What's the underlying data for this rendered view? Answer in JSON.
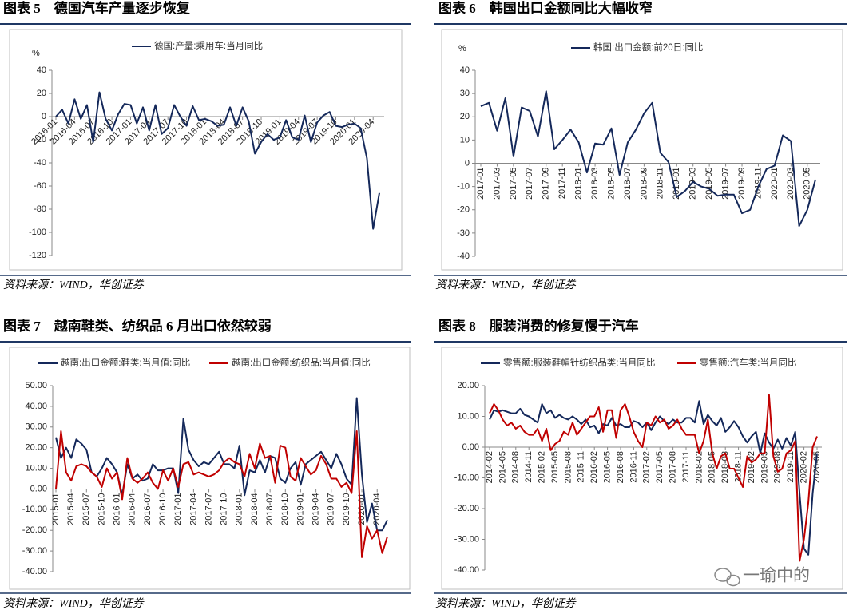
{
  "chart_data": [
    {
      "type": "line",
      "title": "图表 5　德国汽车产量逐步恢复",
      "source": "资料来源：WIND，华创证券",
      "y_label": "%",
      "categories": [
        "2016-01",
        null,
        null,
        "2016-04",
        null,
        null,
        "2016-07",
        null,
        null,
        "2016-10",
        null,
        null,
        "2017-01",
        null,
        null,
        "2017-04",
        null,
        null,
        "2017-07",
        null,
        null,
        "2017-10",
        null,
        null,
        "2018-01",
        null,
        null,
        "2018-04",
        null,
        null,
        "2018-07",
        null,
        null,
        "2018-10",
        null,
        null,
        "2019-01",
        null,
        null,
        "2019-04",
        null,
        null,
        "2019-07",
        null,
        null,
        "2019-10",
        null,
        null,
        "2020-01",
        null,
        null,
        "2020-04",
        null
      ],
      "series": [
        {
          "name": "德国:产量:乘用车:当月同比",
          "color": "#14285a",
          "values": [
            0,
            6,
            -6,
            15,
            -2,
            10,
            -22,
            21,
            -2,
            -12,
            2,
            11,
            10,
            -6,
            8,
            -12,
            10,
            -15,
            -10,
            10,
            0,
            -8,
            9,
            -3,
            -2,
            -4,
            -8,
            -7,
            8,
            -8,
            8,
            -4,
            -32,
            -22,
            -15,
            -20,
            -18,
            -3,
            -18,
            -20,
            1,
            -22,
            -5,
            1,
            4,
            -8,
            -9,
            -7,
            -6,
            -10,
            -36,
            -97,
            -66
          ]
        }
      ],
      "ylim": [
        -120,
        40
      ],
      "yticks": [
        -120,
        -100,
        -80,
        -60,
        -40,
        -20,
        0,
        20,
        40
      ]
    },
    {
      "type": "line",
      "title": "图表 6　韩国出口金额同比大幅收窄",
      "source": "资料来源：WIND，华创证券",
      "y_label": "%",
      "categories": [
        "2017-01",
        null,
        "2017-03",
        null,
        "2017-05",
        null,
        "2017-07",
        null,
        "2017-09",
        null,
        "2017-11",
        null,
        "2018-01",
        null,
        "2018-03",
        null,
        "2018-05",
        null,
        "2018-07",
        null,
        "2018-09",
        null,
        "2018-11",
        null,
        "2019-01",
        null,
        "2019-03",
        null,
        "2019-05",
        null,
        "2019-07",
        null,
        "2019-09",
        null,
        "2019-11",
        null,
        "2020-01",
        null,
        "2020-03",
        null,
        "2020-05",
        null
      ],
      "series": [
        {
          "name": "韩国:出口金额:前20日:同比",
          "color": "#14285a",
          "values": [
            24.5,
            26,
            14,
            28,
            3,
            24,
            22.5,
            11.5,
            31,
            6,
            10,
            14.5,
            9,
            -4,
            8.5,
            8,
            15,
            -5,
            9,
            14.5,
            21.5,
            26,
            4.5,
            0.5,
            -14.5,
            -12,
            -8,
            -10,
            -11,
            -14,
            -13.5,
            -13.5,
            -21.5,
            -20,
            -10,
            -2.5,
            -1,
            12,
            9.5,
            -27,
            -20,
            -7
          ]
        }
      ],
      "ylim": [
        -40,
        40
      ],
      "yticks": [
        -40,
        -30,
        -20,
        -10,
        0,
        10,
        20,
        30,
        40
      ]
    },
    {
      "type": "line",
      "title": "图表 7　越南鞋类、纺织品 6 月出口依然较弱",
      "source": "资料来源：WIND，华创证券",
      "categories": [
        "2015-01",
        null,
        null,
        "2015-04",
        null,
        null,
        "2015-07",
        null,
        null,
        "2015-10",
        null,
        null,
        "2016-01",
        null,
        null,
        "2016-04",
        null,
        null,
        "2016-07",
        null,
        null,
        "2016-10",
        null,
        null,
        "2017-01",
        null,
        null,
        "2017-04",
        null,
        null,
        "2017-07",
        null,
        null,
        "2017-10",
        null,
        null,
        "2018-01",
        null,
        null,
        "2018-04",
        null,
        null,
        "2018-07",
        null,
        null,
        "2018-10",
        null,
        null,
        "2019-01",
        null,
        null,
        "2019-04",
        null,
        null,
        "2019-07",
        null,
        null,
        "2019-10",
        null,
        null,
        "2020-01",
        null,
        null,
        "2020-04",
        null,
        null
      ],
      "series": [
        {
          "name": "越南:出口金额:鞋类:当月值:同比",
          "color": "#14285a",
          "values": [
            25,
            15,
            20,
            15,
            24,
            22,
            19,
            8,
            6,
            10,
            15,
            12,
            8,
            -3,
            12,
            5,
            7,
            4,
            5,
            12,
            9,
            9,
            10,
            10,
            -2,
            34,
            19,
            14,
            11,
            13,
            12,
            15,
            18,
            12,
            12,
            10,
            21,
            -3,
            9,
            8,
            14,
            8,
            16,
            15,
            5,
            3,
            10,
            13,
            2,
            12,
            14,
            16,
            18,
            14,
            10,
            17,
            12,
            5,
            2,
            44,
            7,
            -16,
            -7,
            -20,
            -20,
            -15
          ]
        },
        {
          "name": "越南:出口金额:纺织品:当月值:同比",
          "color": "#c00000",
          "values": [
            0,
            28,
            8,
            4,
            11,
            12,
            11,
            8,
            6,
            1,
            10,
            5,
            8,
            -5,
            15,
            5,
            3,
            5,
            8,
            3,
            0,
            9,
            4,
            10,
            1,
            12,
            13,
            7,
            8,
            7,
            6,
            7,
            9,
            13,
            15,
            13,
            12,
            6,
            17,
            10,
            22,
            15,
            16,
            3,
            21,
            20,
            6,
            4,
            15,
            11,
            7,
            9,
            16,
            12,
            5,
            5,
            1,
            3,
            -2,
            28,
            -33,
            -18,
            -24,
            -20,
            -31,
            -23
          ]
        }
      ],
      "ylim": [
        -40,
        50
      ],
      "yticks": [
        {
          "value": -40,
          "label": "-40.00"
        },
        {
          "value": -30,
          "label": "-30.00"
        },
        {
          "value": -20,
          "label": "-20.00"
        },
        {
          "value": -10,
          "label": "-10.00"
        },
        {
          "value": 0,
          "label": "0.00"
        },
        {
          "value": 10,
          "label": "10.00"
        },
        {
          "value": 20,
          "label": "20.00"
        },
        {
          "value": 30,
          "label": "30.00"
        },
        {
          "value": 40,
          "label": "40.00"
        },
        {
          "value": 50,
          "label": "50.00"
        }
      ]
    },
    {
      "type": "line",
      "title": "图表 8　服装消费的修复慢于汽车",
      "source": "资料来源：WIND，华创证券",
      "categories": [
        "2014-02",
        null,
        null,
        "2014-05",
        null,
        null,
        "2014-08",
        null,
        null,
        "2014-11",
        null,
        null,
        "2015-02",
        null,
        null,
        "2015-05",
        null,
        null,
        "2015-08",
        null,
        null,
        "2015-11",
        null,
        null,
        "2016-02",
        null,
        null,
        "2016-05",
        null,
        null,
        "2016-08",
        null,
        null,
        "2016-11",
        null,
        null,
        "2017-02",
        null,
        null,
        "2017-05",
        null,
        null,
        "2017-08",
        null,
        null,
        "2017-11",
        null,
        null,
        "2018-02",
        null,
        null,
        "2018-05",
        null,
        null,
        "2018-08",
        null,
        null,
        "2018-11",
        null,
        null,
        "2019-02",
        null,
        null,
        "2019-05",
        null,
        null,
        "2019-08",
        null,
        null,
        "2019-11",
        null,
        null,
        "2020-02",
        null,
        null,
        "2020-05"
      ],
      "series": [
        {
          "name": "零售额:服装鞋帽针纺织品类:当月同比",
          "color": "#14285a",
          "values": [
            9,
            12,
            11.5,
            12,
            11.5,
            11,
            11,
            12.5,
            10.5,
            10,
            9,
            8,
            14,
            11,
            12,
            9.5,
            10.5,
            9.5,
            9,
            10,
            9,
            7.5,
            9,
            6.5,
            7,
            4.5,
            7.5,
            7,
            9.5,
            7,
            7.5,
            6.5,
            6.5,
            8.5,
            8,
            6.5,
            8,
            5.5,
            8,
            10,
            8.5,
            7.5,
            9,
            8,
            8,
            9.5,
            9.5,
            8,
            15,
            7.5,
            10.5,
            8.5,
            7,
            9.5,
            5,
            6.5,
            8.5,
            6.5,
            3.5,
            1.5,
            3.5,
            5,
            -2,
            4.5,
            1.5,
            -0.5,
            2.5,
            -0.5,
            3,
            0.5,
            5,
            -15,
            -33,
            -35,
            -15,
            -2
          ]
        },
        {
          "name": "零售额:汽车类:当月同比",
          "color": "#c00000",
          "values": [
            11,
            14,
            12,
            9,
            7,
            8,
            6,
            7,
            5,
            4,
            4,
            6,
            2,
            6,
            -1,
            1,
            2,
            5,
            4,
            8,
            4,
            6,
            8,
            10,
            10,
            13,
            5,
            12,
            12,
            3,
            12,
            14,
            10,
            5,
            2,
            0,
            8,
            7,
            10,
            8,
            9,
            6,
            7,
            9,
            6,
            4,
            4,
            4,
            -2,
            2,
            9,
            -2,
            -7,
            -3,
            -2,
            -7,
            -7,
            -10,
            -13,
            -3,
            -5,
            -4,
            -2,
            -2,
            17,
            -3,
            -8,
            -7,
            -2,
            -1,
            2,
            -37,
            -30,
            -18,
            0,
            3.5
          ]
        }
      ],
      "ylim": [
        -40,
        20
      ],
      "yticks": [
        {
          "value": -40,
          "label": "-40.00"
        },
        {
          "value": -30,
          "label": "-30.00"
        },
        {
          "value": -20,
          "label": "-20.00"
        },
        {
          "value": -10,
          "label": "-10.00"
        },
        {
          "value": 0,
          "label": "0.00"
        },
        {
          "value": 10,
          "label": "10.00"
        },
        {
          "value": 20,
          "label": "20.00"
        }
      ]
    }
  ],
  "watermark": "一瑜中的"
}
